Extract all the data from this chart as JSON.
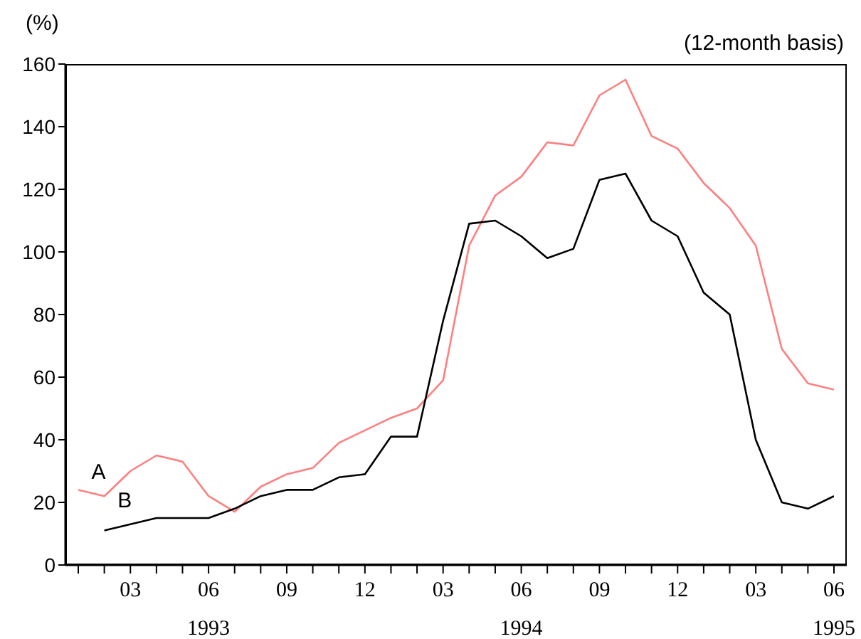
{
  "chart_data": {
    "type": "line",
    "ylabel": "(%)",
    "subtitle": "(12-month basis)",
    "categories": [
      null,
      null,
      "03",
      null,
      null,
      "06\n1993",
      null,
      null,
      "09",
      null,
      null,
      "12",
      null,
      null,
      "03",
      null,
      null,
      "06\n1994",
      null,
      null,
      "09",
      null,
      null,
      "12",
      null,
      null,
      "03",
      null,
      null,
      "06\n1995"
    ],
    "series": [
      {
        "name": "A",
        "color": "#ff7f7f",
        "values": [
          24,
          22,
          30,
          35,
          33,
          22,
          17,
          25,
          29,
          31,
          39,
          43,
          47,
          50,
          59,
          102,
          118,
          124,
          135,
          134,
          150,
          155,
          137,
          133,
          122,
          114,
          102,
          69,
          58,
          56
        ]
      },
      {
        "name": "B",
        "color": "#000000",
        "values": [
          null,
          11,
          13,
          15,
          15,
          15,
          18,
          22,
          24,
          24,
          28,
          29,
          41,
          41,
          78,
          109,
          110,
          105,
          98,
          101,
          123,
          125,
          110,
          105,
          87,
          80,
          40,
          20,
          18,
          22
        ]
      }
    ],
    "ylim": [
      0,
      160
    ],
    "yticks": [
      0,
      20,
      40,
      60,
      80,
      100,
      120,
      140,
      160
    ]
  }
}
